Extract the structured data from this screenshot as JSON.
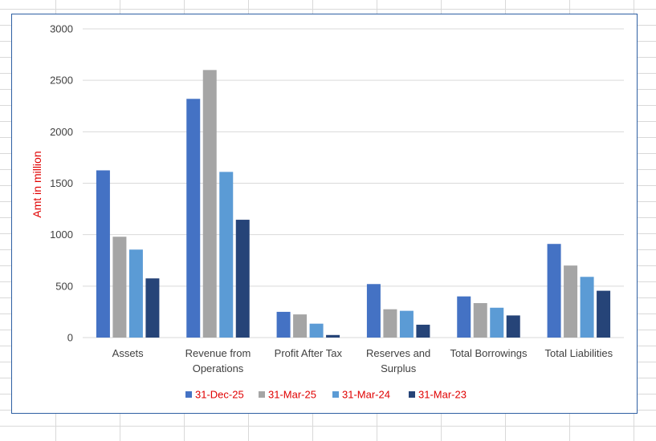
{
  "chart_data": {
    "type": "bar",
    "title": "",
    "xlabel": "",
    "ylabel": "Amt in million",
    "ylim": [
      0,
      3000
    ],
    "yticks": [
      0,
      500,
      1000,
      1500,
      2000,
      2500,
      3000
    ],
    "grid": true,
    "legend_position": "bottom",
    "categories": [
      [
        "Assets"
      ],
      [
        "Revenue from",
        "Operations"
      ],
      [
        "Profit After Tax"
      ],
      [
        "Reserves and",
        "Surplus"
      ],
      [
        "Total Borrowings"
      ],
      [
        "Total Liabilities"
      ]
    ],
    "series": [
      {
        "name": "31-Dec-25",
        "color": "#4472c4",
        "values": [
          1625,
          2320,
          250,
          520,
          400,
          910
        ]
      },
      {
        "name": "31-Mar-25",
        "color": "#a5a5a5",
        "values": [
          980,
          2600,
          225,
          275,
          335,
          700
        ]
      },
      {
        "name": "31-Mar-24",
        "color": "#5b9bd5",
        "values": [
          855,
          1610,
          135,
          260,
          290,
          590
        ]
      },
      {
        "name": "31-Mar-23",
        "color": "#264478",
        "values": [
          575,
          1145,
          25,
          125,
          215,
          455
        ]
      }
    ]
  }
}
